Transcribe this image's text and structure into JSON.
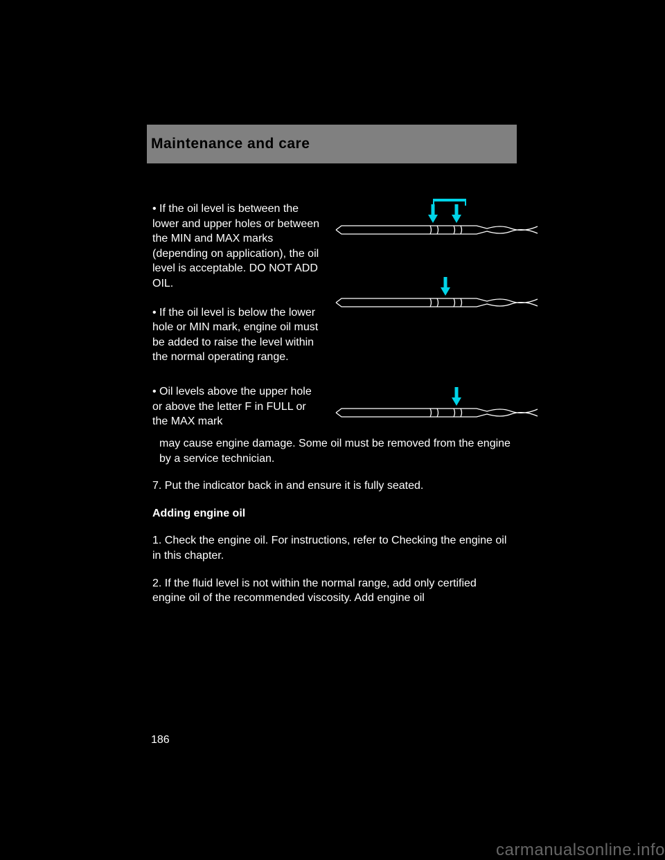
{
  "header": {
    "title": "Maintenance and care"
  },
  "fig1": {
    "arrow_color": "#00d4e8",
    "arrow_bridge": true,
    "arrows": [
      142,
      176
    ],
    "stroke": "#ffffff"
  },
  "fig2": {
    "arrow_color": "#00d4e8",
    "arrows": [
      160
    ],
    "stroke": "#ffffff"
  },
  "fig3": {
    "arrow_color": "#00d4e8",
    "arrows": [
      176
    ],
    "stroke": "#ffffff"
  },
  "text": {
    "p1": "• If the oil level is between the lower and upper holes or between the MIN and MAX marks (depending on application), the oil level is acceptable. DO NOT ADD OIL.",
    "p2": "• If the oil level is below the lower hole or MIN mark, engine oil must be added to raise the level within the normal operating range.",
    "p3a": "• Oil levels above the upper hole or above the letter F in FULL or the MAX mark",
    "p3b": "may cause engine damage. Some oil must be removed from the engine by a service technician.",
    "p4": "7. Put the indicator back in and ensure it is fully seated.",
    "heading2": "Adding engine oil",
    "p5": "1. Check the engine oil. For instructions, refer to Checking the engine oil in this chapter.",
    "p6": "2. If the fluid level is not within the normal range, add only certified engine oil of the recommended viscosity. Add engine oil"
  },
  "page_number": "186",
  "watermark": "carmanualsonline.info"
}
